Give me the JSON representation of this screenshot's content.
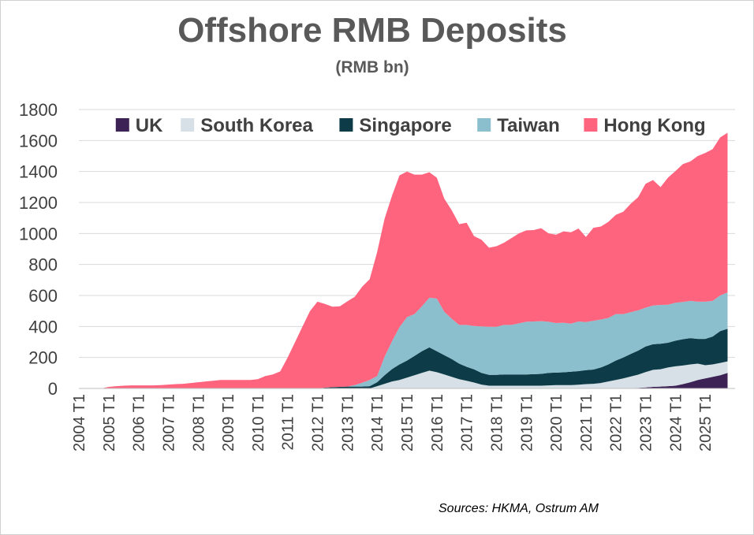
{
  "chart_data": {
    "type": "area",
    "stacked": true,
    "title": "Offshore RMB Deposits",
    "subtitle": "(RMB bn)",
    "source": "Sources: HKMA, Ostrum AM",
    "ylim": [
      0,
      1800
    ],
    "yticks": [
      0,
      200,
      400,
      600,
      800,
      1000,
      1200,
      1400,
      1600,
      1800
    ],
    "grid": true,
    "legend_position": "top",
    "categories": [
      "2004 T1",
      "2005 T1",
      "2006 T1",
      "2007 T1",
      "2008 T1",
      "2009 T1",
      "2010 T1",
      "2011 T1",
      "2012 T1",
      "2013 T1",
      "2014 T1",
      "2015 T1",
      "2016 T1",
      "2017 T1",
      "2018 T1",
      "2019 T1",
      "2020 T1",
      "2021 T1",
      "2022 T1",
      "2023 T1",
      "2024 T1",
      "2025 T1"
    ],
    "x": [
      2004.0,
      2004.25,
      2004.5,
      2004.75,
      2005.0,
      2005.25,
      2005.5,
      2005.75,
      2006.0,
      2006.25,
      2006.5,
      2006.75,
      2007.0,
      2007.25,
      2007.5,
      2007.75,
      2008.0,
      2008.25,
      2008.5,
      2008.75,
      2009.0,
      2009.25,
      2009.5,
      2009.75,
      2010.0,
      2010.25,
      2010.5,
      2010.75,
      2011.0,
      2011.25,
      2011.5,
      2011.75,
      2012.0,
      2012.25,
      2012.5,
      2012.75,
      2013.0,
      2013.25,
      2013.5,
      2013.75,
      2014.0,
      2014.25,
      2014.5,
      2014.75,
      2015.0,
      2015.25,
      2015.5,
      2015.75,
      2016.0,
      2016.25,
      2016.5,
      2016.75,
      2017.0,
      2017.25,
      2017.5,
      2017.75,
      2018.0,
      2018.25,
      2018.5,
      2018.75,
      2019.0,
      2019.25,
      2019.5,
      2019.75,
      2020.0,
      2020.25,
      2020.5,
      2020.75,
      2021.0,
      2021.25,
      2021.5,
      2021.75,
      2022.0,
      2022.25,
      2022.5,
      2022.75,
      2023.0,
      2023.25,
      2023.5,
      2023.75,
      2024.0,
      2024.25,
      2024.5,
      2024.75,
      2025.0,
      2025.25,
      2025.5,
      2025.75
    ],
    "series": [
      {
        "name": "UK",
        "color": "#3d2255",
        "values": [
          0,
          0,
          0,
          0,
          0,
          0,
          0,
          0,
          0,
          0,
          0,
          0,
          0,
          0,
          0,
          0,
          0,
          0,
          0,
          0,
          0,
          0,
          0,
          0,
          0,
          0,
          0,
          0,
          0,
          0,
          0,
          0,
          0,
          0,
          0,
          0,
          0,
          0,
          0,
          0,
          0,
          0,
          0,
          0,
          0,
          0,
          0,
          0,
          0,
          0,
          0,
          0,
          0,
          0,
          0,
          0,
          0,
          0,
          0,
          0,
          0,
          0,
          0,
          0,
          0,
          0,
          0,
          0,
          0,
          0,
          0,
          0,
          0,
          0,
          2,
          4,
          6,
          10,
          12,
          15,
          18,
          28,
          40,
          55,
          65,
          75,
          85,
          100
        ]
      },
      {
        "name": "South Korea",
        "color": "#d6e0e6",
        "values": [
          0,
          0,
          0,
          0,
          0,
          0,
          0,
          0,
          0,
          0,
          0,
          0,
          0,
          0,
          0,
          0,
          0,
          0,
          0,
          0,
          0,
          0,
          0,
          0,
          0,
          0,
          0,
          0,
          0,
          0,
          0,
          0,
          0,
          0,
          0,
          0,
          0,
          0,
          0,
          0,
          15,
          30,
          45,
          55,
          70,
          85,
          100,
          115,
          105,
          90,
          75,
          60,
          50,
          38,
          25,
          18,
          18,
          18,
          18,
          18,
          18,
          18,
          18,
          20,
          22,
          22,
          22,
          24,
          28,
          30,
          35,
          45,
          55,
          65,
          75,
          85,
          100,
          110,
          112,
          120,
          125,
          120,
          115,
          105,
          85,
          80,
          80,
          75
        ]
      },
      {
        "name": "Singapore",
        "color": "#0d3c48",
        "values": [
          0,
          0,
          0,
          0,
          0,
          0,
          0,
          0,
          0,
          0,
          0,
          0,
          0,
          0,
          0,
          0,
          0,
          0,
          0,
          0,
          0,
          0,
          0,
          0,
          0,
          0,
          0,
          0,
          0,
          0,
          0,
          0,
          0,
          5,
          8,
          10,
          12,
          12,
          12,
          15,
          25,
          55,
          80,
          100,
          110,
          125,
          140,
          150,
          135,
          125,
          115,
          100,
          90,
          85,
          75,
          70,
          70,
          72,
          72,
          72,
          72,
          74,
          76,
          80,
          80,
          82,
          86,
          88,
          90,
          92,
          100,
          110,
          125,
          135,
          145,
          155,
          165,
          165,
          165,
          160,
          165,
          170,
          170,
          160,
          170,
          180,
          205,
          210
        ]
      },
      {
        "name": "Taiwan",
        "color": "#8bbfcd",
        "values": [
          0,
          0,
          0,
          0,
          0,
          0,
          0,
          0,
          0,
          0,
          0,
          0,
          0,
          0,
          0,
          0,
          0,
          0,
          0,
          0,
          0,
          0,
          0,
          0,
          0,
          0,
          0,
          0,
          0,
          0,
          0,
          0,
          0,
          0,
          0,
          0,
          0,
          10,
          25,
          40,
          40,
          120,
          180,
          240,
          280,
          270,
          290,
          320,
          340,
          280,
          260,
          250,
          270,
          280,
          300,
          310,
          310,
          320,
          320,
          330,
          340,
          340,
          340,
          330,
          320,
          320,
          310,
          320,
          310,
          315,
          310,
          300,
          300,
          280,
          270,
          260,
          250,
          250,
          250,
          245,
          245,
          240,
          240,
          240,
          240,
          230,
          230,
          235
        ]
      },
      {
        "name": "Hong Kong",
        "color": "#ff647f",
        "values": [
          0,
          0,
          0,
          0,
          10,
          15,
          18,
          20,
          20,
          20,
          20,
          22,
          25,
          28,
          30,
          35,
          40,
          45,
          50,
          55,
          55,
          55,
          55,
          55,
          60,
          80,
          90,
          110,
          200,
          300,
          400,
          500,
          560,
          540,
          520,
          520,
          550,
          570,
          620,
          650,
          800,
          890,
          940,
          980,
          940,
          900,
          850,
          810,
          780,
          730,
          700,
          650,
          660,
          580,
          560,
          510,
          520,
          530,
          560,
          580,
          590,
          590,
          600,
          570,
          570,
          590,
          590,
          600,
          550,
          600,
          600,
          620,
          640,
          660,
          700,
          730,
          800,
          810,
          760,
          820,
          850,
          890,
          900,
          940,
          960,
          980,
          1020,
          1030
        ]
      }
    ]
  }
}
